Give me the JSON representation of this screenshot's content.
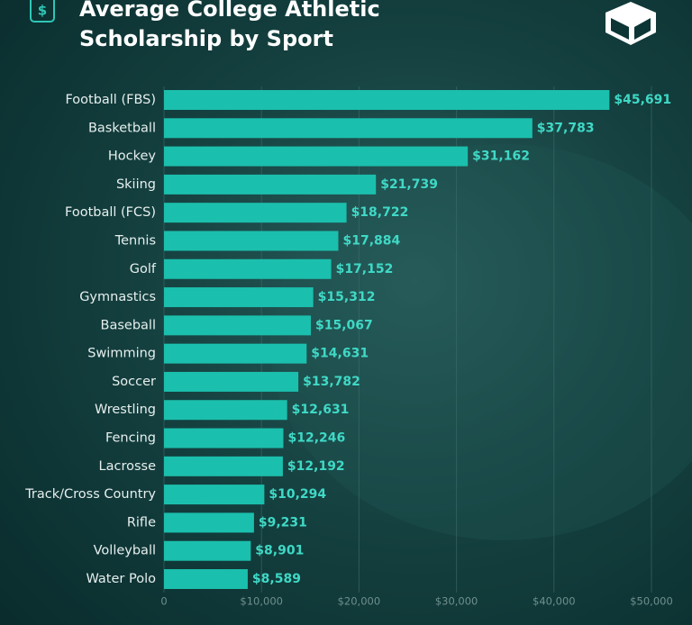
{
  "chart_data": {
    "type": "bar",
    "orientation": "horizontal",
    "title": "Average College Athletic Scholarship by Sport",
    "categories": [
      "Football (FBS)",
      "Basketball",
      "Hockey",
      "Skiing",
      "Football (FCS)",
      "Tennis",
      "Golf",
      "Gymnastics",
      "Baseball",
      "Swimming",
      "Soccer",
      "Wrestling",
      "Fencing",
      "Lacrosse",
      "Track/Cross Country",
      "Rifle",
      "Volleyball",
      "Water Polo"
    ],
    "values": [
      45691,
      37783,
      31162,
      21739,
      18722,
      17884,
      17152,
      15312,
      15067,
      14631,
      13782,
      12631,
      12246,
      12192,
      10294,
      9231,
      8901,
      8589
    ],
    "value_labels": [
      "$45,691",
      "$37,783",
      "$31,162",
      "$21,739",
      "$18,722",
      "$17,884",
      "$17,152",
      "$15,312",
      "$15,067",
      "$14,631",
      "$13,782",
      "$12,631",
      "$12,246",
      "$12,192",
      "$10,294",
      "$9,231",
      "$8,901",
      "$8,589"
    ],
    "color": "#1bbfad",
    "xlim": [
      0,
      50000
    ],
    "xticks": [
      0,
      {
        "value": 10000,
        "label": "$10,000"
      },
      {
        "value": 20000,
        "label": "$20,000"
      },
      {
        "value": 30000,
        "label": "$30,000"
      },
      {
        "value": 40000,
        "label": "$40,000"
      },
      {
        "value": 50000,
        "label": "$50,000"
      }
    ],
    "grid": true
  }
}
